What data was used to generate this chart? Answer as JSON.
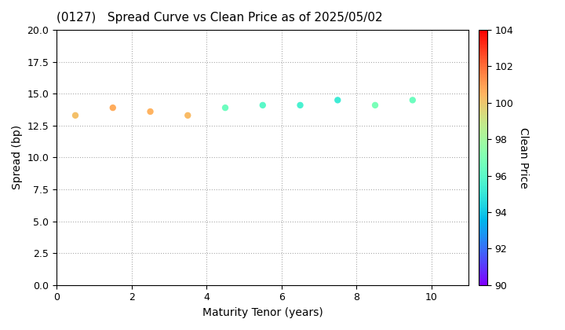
{
  "title": "(0127)   Spread Curve vs Clean Price as of 2025/05/02",
  "xlabel": "Maturity Tenor (years)",
  "ylabel": "Spread (bp)",
  "colorbar_label": "Clean Price",
  "xlim": [
    0,
    11
  ],
  "ylim": [
    0.0,
    20.0
  ],
  "yticks": [
    0.0,
    2.5,
    5.0,
    7.5,
    10.0,
    12.5,
    15.0,
    17.5,
    20.0
  ],
  "xticks": [
    0,
    2,
    4,
    6,
    8,
    10
  ],
  "colorbar_min": 90,
  "colorbar_max": 104,
  "colorbar_ticks": [
    90,
    92,
    94,
    96,
    98,
    100,
    102,
    104
  ],
  "scatter_x": [
    0.5,
    1.5,
    2.5,
    3.5,
    4.5,
    5.5,
    6.5,
    7.5,
    8.5,
    9.5
  ],
  "scatter_y": [
    13.3,
    13.9,
    13.6,
    13.3,
    13.9,
    14.1,
    14.1,
    14.5,
    14.1,
    14.5
  ],
  "scatter_colors": [
    100.2,
    100.7,
    100.5,
    100.3,
    96.5,
    96.0,
    95.5,
    95.2,
    96.8,
    96.5
  ],
  "marker_size": 25,
  "bg_color": "#ffffff",
  "grid_color": "#aaaaaa",
  "title_fontsize": 11,
  "label_fontsize": 10,
  "tick_fontsize": 9,
  "cbar_tick_fontsize": 9
}
